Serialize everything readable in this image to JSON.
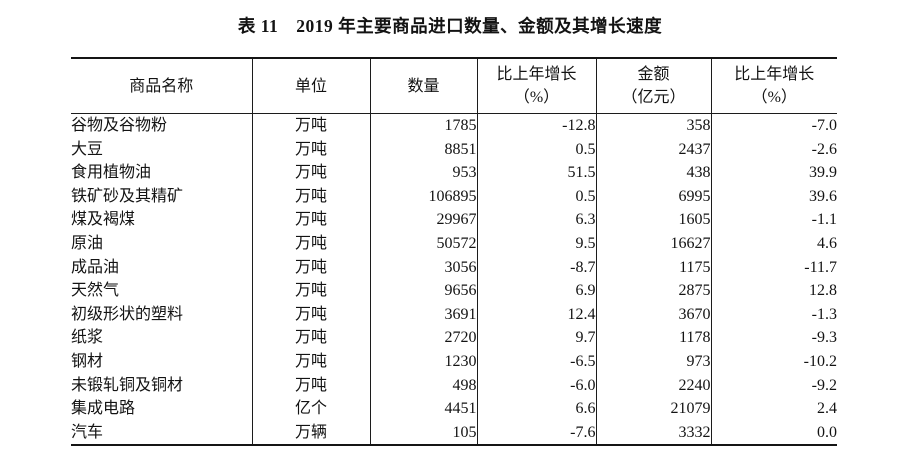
{
  "title": "表 11　2019 年主要商品进口数量、金额及其增长速度",
  "table": {
    "headers": [
      {
        "key": "name",
        "lines": [
          "商品名称"
        ]
      },
      {
        "key": "unit",
        "lines": [
          "单位"
        ]
      },
      {
        "key": "qty",
        "lines": [
          "数量"
        ]
      },
      {
        "key": "qty_growth",
        "lines": [
          "比上年增长",
          "（%）"
        ]
      },
      {
        "key": "value",
        "lines": [
          "金额",
          "（亿元）"
        ]
      },
      {
        "key": "value_growth",
        "lines": [
          "比上年增长",
          "（%）"
        ]
      }
    ],
    "rows": [
      {
        "name": "谷物及谷物粉",
        "unit": "万吨",
        "qty": "1785",
        "qty_growth": "-12.8",
        "value": "358",
        "value_growth": "-7.0"
      },
      {
        "name": "大豆",
        "unit": "万吨",
        "qty": "8851",
        "qty_growth": "0.5",
        "value": "2437",
        "value_growth": "-2.6"
      },
      {
        "name": "食用植物油",
        "unit": "万吨",
        "qty": "953",
        "qty_growth": "51.5",
        "value": "438",
        "value_growth": "39.9"
      },
      {
        "name": "铁矿砂及其精矿",
        "unit": "万吨",
        "qty": "106895",
        "qty_growth": "0.5",
        "value": "6995",
        "value_growth": "39.6"
      },
      {
        "name": "煤及褐煤",
        "unit": "万吨",
        "qty": "29967",
        "qty_growth": "6.3",
        "value": "1605",
        "value_growth": "-1.1"
      },
      {
        "name": "原油",
        "unit": "万吨",
        "qty": "50572",
        "qty_growth": "9.5",
        "value": "16627",
        "value_growth": "4.6"
      },
      {
        "name": "成品油",
        "unit": "万吨",
        "qty": "3056",
        "qty_growth": "-8.7",
        "value": "1175",
        "value_growth": "-11.7"
      },
      {
        "name": "天然气",
        "unit": "万吨",
        "qty": "9656",
        "qty_growth": "6.9",
        "value": "2875",
        "value_growth": "12.8"
      },
      {
        "name": "初级形状的塑料",
        "unit": "万吨",
        "qty": "3691",
        "qty_growth": "12.4",
        "value": "3670",
        "value_growth": "-1.3"
      },
      {
        "name": "纸浆",
        "unit": "万吨",
        "qty": "2720",
        "qty_growth": "9.7",
        "value": "1178",
        "value_growth": "-9.3"
      },
      {
        "name": "钢材",
        "unit": "万吨",
        "qty": "1230",
        "qty_growth": "-6.5",
        "value": "973",
        "value_growth": "-10.2"
      },
      {
        "name": "未锻轧铜及铜材",
        "unit": "万吨",
        "qty": "498",
        "qty_growth": "-6.0",
        "value": "2240",
        "value_growth": "-9.2"
      },
      {
        "name": "集成电路",
        "unit": "亿个",
        "qty": "4451",
        "qty_growth": "6.6",
        "value": "21079",
        "value_growth": "2.4"
      },
      {
        "name": "汽车",
        "unit": "万辆",
        "qty": "105",
        "qty_growth": "-7.6",
        "value": "3332",
        "value_growth": "0.0"
      }
    ]
  }
}
